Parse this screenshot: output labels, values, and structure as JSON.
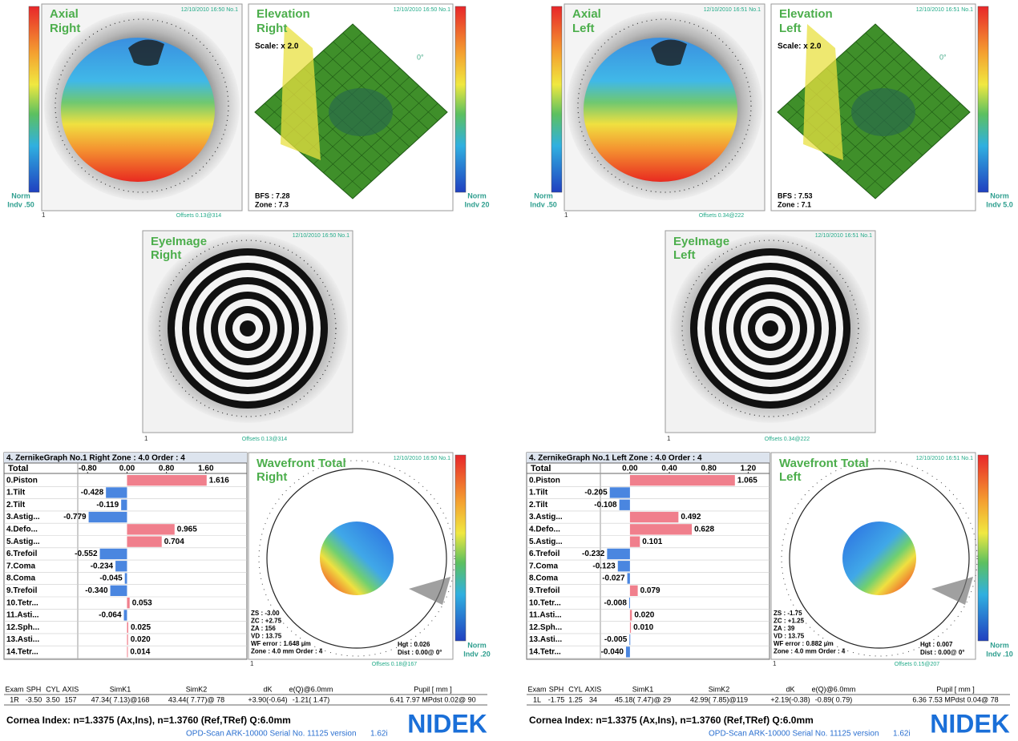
{
  "right": {
    "axial": {
      "title": "Axial",
      "side": "Right",
      "date": "12/10/2010 16:50 No.1",
      "norm": "Norm",
      "indv": "Indv .50",
      "offsets": "Offsets 0.13@314",
      "panel_no": "1"
    },
    "elevation": {
      "title": "Elevation",
      "side": "Right",
      "date": "12/10/2010 16:50 No.1",
      "scale": "Scale: x 2.0",
      "angle": "0°",
      "bfs": "BFS : 7.28",
      "zone": "Zone : 7.3",
      "norm": "Norm",
      "indv": "Indv 20"
    },
    "eyeimage": {
      "title": "EyeImage",
      "side": "Right",
      "date": "12/10/2010 16:50 No.1",
      "offsets": "Offsets 0.13@314",
      "panel_no": "1"
    },
    "zernike": {
      "header": "4. ZernikeGraph No.1 Right Zone : 4.0 Order : 4",
      "column": "Total",
      "xlim": [
        -1.0,
        2.4
      ],
      "xticks": [
        {
          "value": -0.8,
          "label": "-0.80"
        },
        {
          "value": 0,
          "label": "0.00"
        },
        {
          "value": 0.8,
          "label": "0.80"
        },
        {
          "value": 1.6,
          "label": "1.60"
        }
      ],
      "terms": [
        "0.Piston",
        "1.Tilt",
        "2.Tilt",
        "3.Astig...",
        "4.Defo...",
        "5.Astig...",
        "6.Trefoil",
        "7.Coma",
        "8.Coma",
        "9.Trefoil",
        "10.Tetr...",
        "11.Asti...",
        "12.Sph...",
        "13.Asti...",
        "14.Tetr..."
      ],
      "values": [
        1.616,
        -0.428,
        -0.119,
        -0.779,
        0.965,
        0.704,
        -0.552,
        -0.234,
        -0.045,
        -0.34,
        0.053,
        -0.064,
        0.025,
        0.02,
        0.014
      ],
      "value_labels": [
        "1.616",
        "-0.428",
        "-0.119",
        "-0.779",
        "0.965",
        "0.704",
        "-0.552",
        "-0.234",
        "-0.045",
        "-0.340",
        "0.053",
        "-0.064",
        "0.025",
        "0.020",
        "0.014"
      ],
      "positive_color": "#f07f8c",
      "negative_color": "#4a86e0"
    },
    "wavefront": {
      "title": "Wavefront Total",
      "side": "Right",
      "date": "12/10/2010 16:50 No.1",
      "info": [
        "ZS : -3.00",
        "ZC : +2.75",
        "ZA : 156",
        "VD : 13.75",
        "WF error : 1.648 μm",
        "Zone : 4.0 mm Order : 4"
      ],
      "hgt": "Hgt : 0.026",
      "dist": "Dist : 0.00@ 0°",
      "norm": "Norm",
      "indv": "Indv .20",
      "offsets": "Offsets 0.18@167",
      "panel_no": "1"
    },
    "exam": {
      "headers": [
        "Exam",
        "SPH",
        "CYL",
        "AXIS",
        "SimK1",
        "SimK2",
        "dK",
        "e(Q)@6.0mm",
        "Pupil [ mm ]"
      ],
      "row": [
        "1R",
        "-3.50",
        "3.50",
        "157",
        "47.34( 7.13)@168",
        "43.44( 7.77)@ 78",
        "+3.90(-0.64)",
        "-1.21( 1.47)",
        "6.41  7.97 MPdst  0.02@ 90"
      ]
    },
    "cornea": "Cornea Index: n=1.3375 (Ax,Ins), n=1.3760 (Ref,TRef)  Q:6.0mm",
    "device": "OPD-Scan ARK-10000 Serial No. 11125  version",
    "version": "1.62i",
    "logo": "NIDEK"
  },
  "left": {
    "axial": {
      "title": "Axial",
      "side": "Left",
      "date": "12/10/2010 16:51 No.1",
      "norm": "Norm",
      "indv": "Indv .50",
      "offsets": "Offsets 0.34@222",
      "panel_no": "1"
    },
    "elevation": {
      "title": "Elevation",
      "side": "Left",
      "date": "12/10/2010 16:51 No.1",
      "scale": "Scale: x 2.0",
      "angle": "0°",
      "bfs": "BFS : 7.53",
      "zone": "Zone : 7.1",
      "norm": "Norm",
      "indv": "Indv 5.0"
    },
    "eyeimage": {
      "title": "EyeImage",
      "side": "Left",
      "date": "12/10/2010 16:51 No.1",
      "offsets": "Offsets 0.34@222",
      "panel_no": "1"
    },
    "zernike": {
      "header": "4. ZernikeGraph No.1 Left Zone : 4.0 Order : 4",
      "column": "Total",
      "xlim": [
        -0.3,
        1.4
      ],
      "xticks": [
        {
          "value": 0,
          "label": "0.00"
        },
        {
          "value": 0.4,
          "label": "0.40"
        },
        {
          "value": 0.8,
          "label": "0.80"
        },
        {
          "value": 1.2,
          "label": "1.20"
        }
      ],
      "terms": [
        "0.Piston",
        "1.Tilt",
        "2.Tilt",
        "3.Astig...",
        "4.Defo...",
        "5.Astig...",
        "6.Trefoil",
        "7.Coma",
        "8.Coma",
        "9.Trefoil",
        "10.Tetr...",
        "11.Asti...",
        "12.Sph...",
        "13.Asti...",
        "14.Tetr..."
      ],
      "values": [
        1.065,
        -0.205,
        -0.108,
        0.492,
        0.628,
        0.101,
        -0.232,
        -0.123,
        -0.027,
        0.079,
        -0.008,
        0.02,
        0.01,
        -0.005,
        -0.04
      ],
      "value_labels": [
        "1.065",
        "-0.205",
        "-0.108",
        "0.492",
        "0.628",
        "0.101",
        "-0.232",
        "-0.123",
        "-0.027",
        "0.079",
        "-0.008",
        "0.020",
        "0.010",
        "-0.005",
        "-0.040"
      ],
      "positive_color": "#f07f8c",
      "negative_color": "#4a86e0"
    },
    "wavefront": {
      "title": "Wavefront Total",
      "side": "Left",
      "date": "12/10/2010 16:51 No.1",
      "info": [
        "ZS : -1.75",
        "ZC : +1.25",
        "ZA : 39",
        "VD : 13.75",
        "WF error : 0.882 μm",
        "Zone : 4.0 mm Order : 4"
      ],
      "hgt": "Hgt : 0.007",
      "dist": "Dist : 0.00@ 0°",
      "norm": "Norm",
      "indv": "Indv .10",
      "offsets": "Offsets 0.15@207",
      "panel_no": "1"
    },
    "exam": {
      "headers": [
        "Exam",
        "SPH",
        "CYL",
        "AXIS",
        "SimK1",
        "SimK2",
        "dK",
        "e(Q)@6.0mm",
        "Pupil [ mm ]"
      ],
      "row": [
        "1L",
        "-1.75",
        "1.25",
        "34",
        "45.18( 7.47)@ 29",
        "42.99( 7.85)@119",
        "+2.19(-0.38)",
        "-0.89( 0.79)",
        "6.36  7.53 MPdst  0.04@ 78"
      ]
    },
    "cornea": "Cornea Index: n=1.3375 (Ax,Ins), n=1.3760 (Ref,TRef)  Q:6.0mm",
    "device": "OPD-Scan ARK-10000 Serial No. 11125  version",
    "version": "1.62i",
    "logo": "NIDEK"
  }
}
